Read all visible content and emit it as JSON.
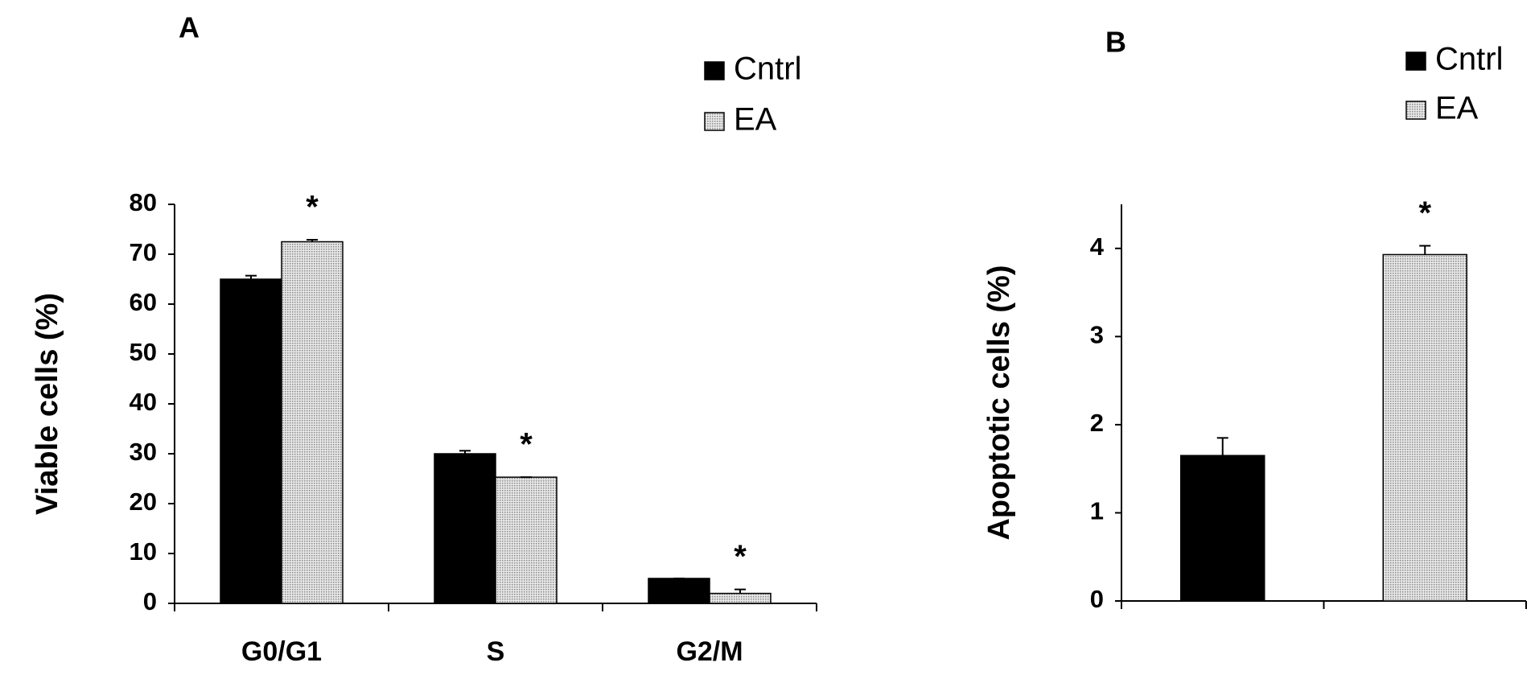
{
  "chart_data": [
    {
      "type": "bar",
      "panel": "A",
      "y_label": "Viable cells (%)",
      "categories": [
        "G0/G1",
        "S",
        "G2/M"
      ],
      "series": [
        {
          "name": "Cntrl",
          "color": "#000000",
          "values": [
            65,
            30,
            5
          ],
          "errors": [
            0.7,
            0.6,
            0
          ]
        },
        {
          "name": "EA",
          "color": "#c8c8c8",
          "values": [
            72.5,
            25.3,
            2
          ],
          "errors": [
            0.4,
            0,
            0.8
          ],
          "annotations": [
            "*",
            "*",
            "*"
          ]
        }
      ],
      "ylim": [
        0,
        80
      ],
      "yticks": [
        0,
        10,
        20,
        30,
        40,
        50,
        60,
        70,
        80
      ]
    },
    {
      "type": "bar",
      "panel": "B",
      "y_label": "Apoptotic cells (%)",
      "categories": [
        null,
        null
      ],
      "series": [
        {
          "name": "Cntrl",
          "color": "#000000",
          "values": [
            1.65,
            null
          ],
          "errors": [
            0.2,
            null
          ]
        },
        {
          "name": "EA",
          "color": "#c8c8c8",
          "values": [
            null,
            3.93
          ],
          "errors": [
            null,
            0.1
          ],
          "annotations": [
            null,
            "*"
          ]
        }
      ],
      "ylim": [
        0,
        4.5
      ],
      "yticks": [
        0,
        1,
        2,
        3,
        4
      ]
    }
  ]
}
